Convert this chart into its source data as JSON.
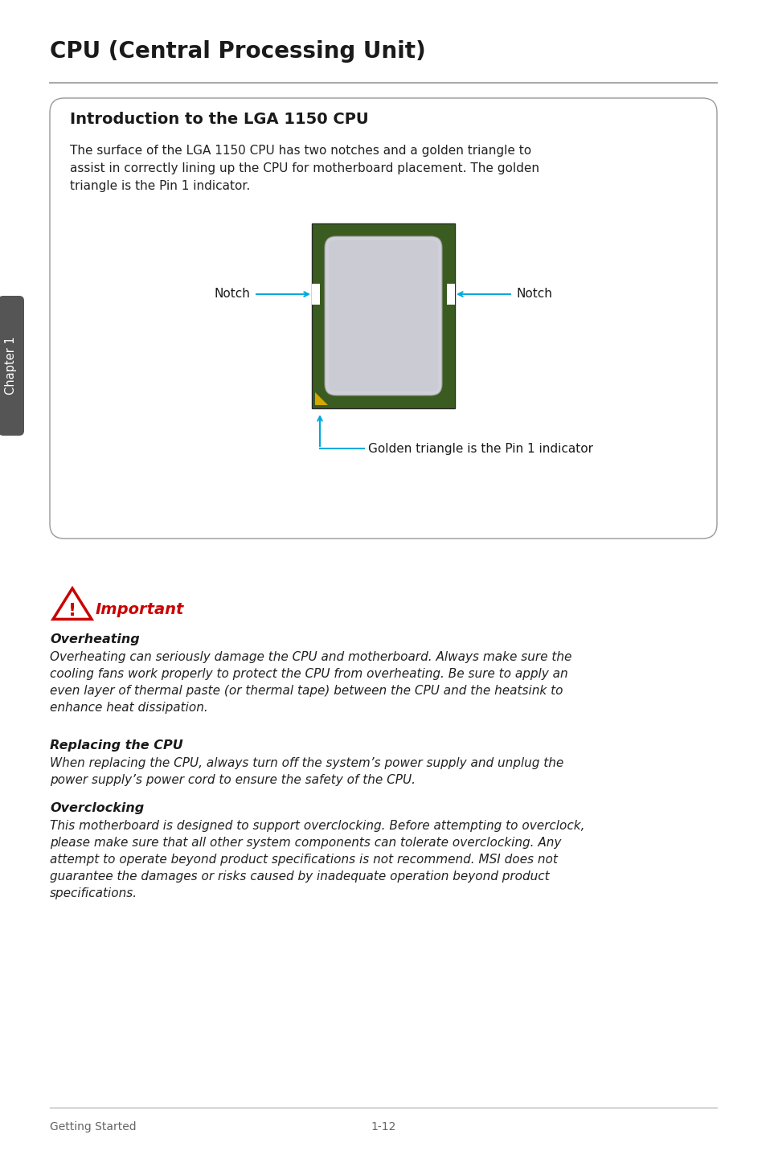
{
  "page_title": "CPU (Central Processing Unit)",
  "box_title": "Introduction to the LGA 1150 CPU",
  "box_intro_line1": "The surface of the LGA 1150 CPU has two notches and a golden triangle to",
  "box_intro_line2": "assist in correctly lining up the CPU for motherboard placement. The golden",
  "box_intro_line3": "triangle is the Pin 1 indicator.",
  "notch_label": "Notch",
  "golden_label": "Golden triangle is the Pin 1 indicator",
  "important_label": "Important",
  "overheating_title": "Overheating",
  "overheating_text": "Overheating can seriously damage the CPU and motherboard. Always make sure the\ncooling fans work properly to protect the CPU from overheating. Be sure to apply an\neven layer of thermal paste (or thermal tape) between the CPU and the heatsink to\nenhance heat dissipation.",
  "replacing_title": "Replacing the CPU",
  "replacing_text": "When replacing the CPU, always turn off the system’s power supply and unplug the\npower supply’s power cord to ensure the safety of the CPU.",
  "overclocking_title": "Overclocking",
  "overclocking_text": "This motherboard is designed to support overclocking. Before attempting to overclock,\nplease make sure that all other system components can tolerate overclocking. Any\nattempt to operate beyond product specifications is not recommend. MSI does not\nguarantee the damages or risks caused by inadequate operation beyond product\nspecifications.",
  "footer_left": "Getting Started",
  "footer_right": "1-12",
  "chapter_label": "Chapter 1",
  "bg_color": "#ffffff",
  "title_color": "#1a1a1a",
  "box_border_color": "#999999",
  "chapter_tab_color": "#555555",
  "chapter_text_color": "#ffffff",
  "arrow_color": "#00aadd",
  "cpu_green": "#3a5c20",
  "cpu_light_gray": "#c0c0c8",
  "cpu_silver": "#d0d0d8",
  "cpu_dark_outline": "#2a2a2a",
  "golden_color": "#d4a800",
  "important_color": "#cc0000",
  "line_color": "#aaaaaa",
  "text_color": "#1a1a1a",
  "body_text_color": "#222222"
}
